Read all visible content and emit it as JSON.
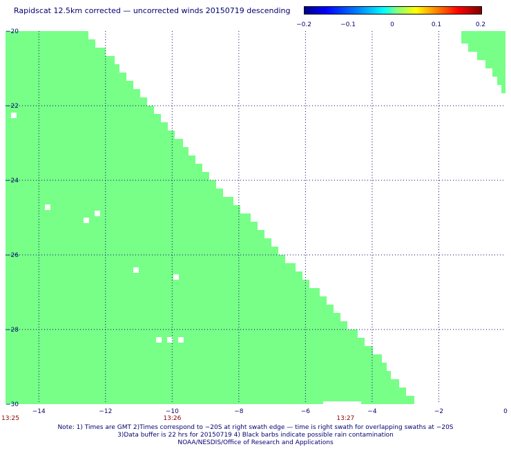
{
  "title": "Rapidscat 12.5km corrected — uncorrected winds 20150719 descending",
  "colorbar": {
    "labels": [
      "−0.2",
      "−0.1",
      "0",
      "0.1",
      "0.2"
    ],
    "values": [
      -0.2,
      -0.1,
      0,
      0.1,
      0.2
    ]
  },
  "map": {
    "lon_range": [
      -15,
      0
    ],
    "lat_range": [
      -30,
      -20
    ],
    "lon_ticks": [
      -14,
      -12,
      -10,
      -8,
      -6,
      -4,
      -2,
      0
    ],
    "lon_tick_labels": [
      "−14",
      "−12",
      "−10",
      "−8",
      "−6",
      "−4",
      "−2",
      "0"
    ],
    "lat_ticks": [
      -20,
      -22,
      -24,
      -26,
      -28,
      -30
    ],
    "lat_tick_labels": [
      "−20",
      "−22",
      "−24",
      "−26",
      "−28",
      "−30"
    ],
    "swath_color": "#77ff88",
    "grid": true,
    "time_labels": [
      {
        "text": "13:25",
        "lon": -15.0
      },
      {
        "text": "13:26",
        "lon": -10.0
      },
      {
        "text": "13:27",
        "lon": -4.8
      }
    ]
  },
  "footer": {
    "line1": "Note: 1) Times are GMT 2)Times correspond to −20S at right swath edge — time is right swath for overlapping swaths at −20S",
    "line2": "3)Data buffer is 22 hrs for 20150719 4) Black barbs indicate possible rain contamination",
    "line3": "NOAA/NESDIS/Office of Research and Applications"
  }
}
